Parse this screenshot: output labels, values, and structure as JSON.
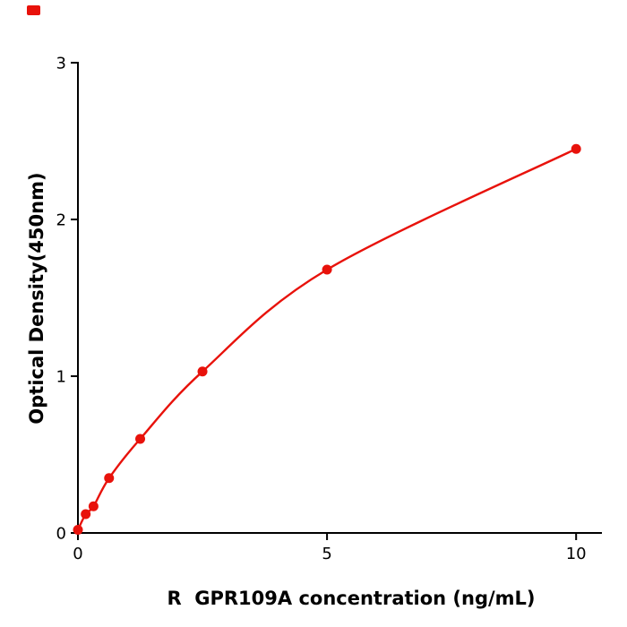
{
  "page": {
    "background": "#ffffff"
  },
  "accent_color": "#e8120b",
  "corner_mark": {
    "color": "#e8120b"
  },
  "chart_data": {
    "type": "line",
    "title": "",
    "xlabel": "R  GPR109A concentration (ng/mL)",
    "ylabel": "Optical Density(450nm)",
    "x": [
      0,
      0.156,
      0.3125,
      0.625,
      1.25,
      2.5,
      5,
      10
    ],
    "y": [
      0.02,
      0.12,
      0.17,
      0.35,
      0.6,
      1.03,
      1.68,
      2.45
    ],
    "xlim": [
      0,
      10.5
    ],
    "ylim": [
      0,
      3
    ],
    "xticks": [
      0,
      5,
      10
    ],
    "yticks": [
      0,
      1,
      2,
      3
    ],
    "grid": false,
    "legend_position": "none",
    "line_color": "#e8120b",
    "marker_color": "#e8120b",
    "marker_size": 5.5,
    "axis_color": "#000000",
    "tick_font_size": 18
  }
}
